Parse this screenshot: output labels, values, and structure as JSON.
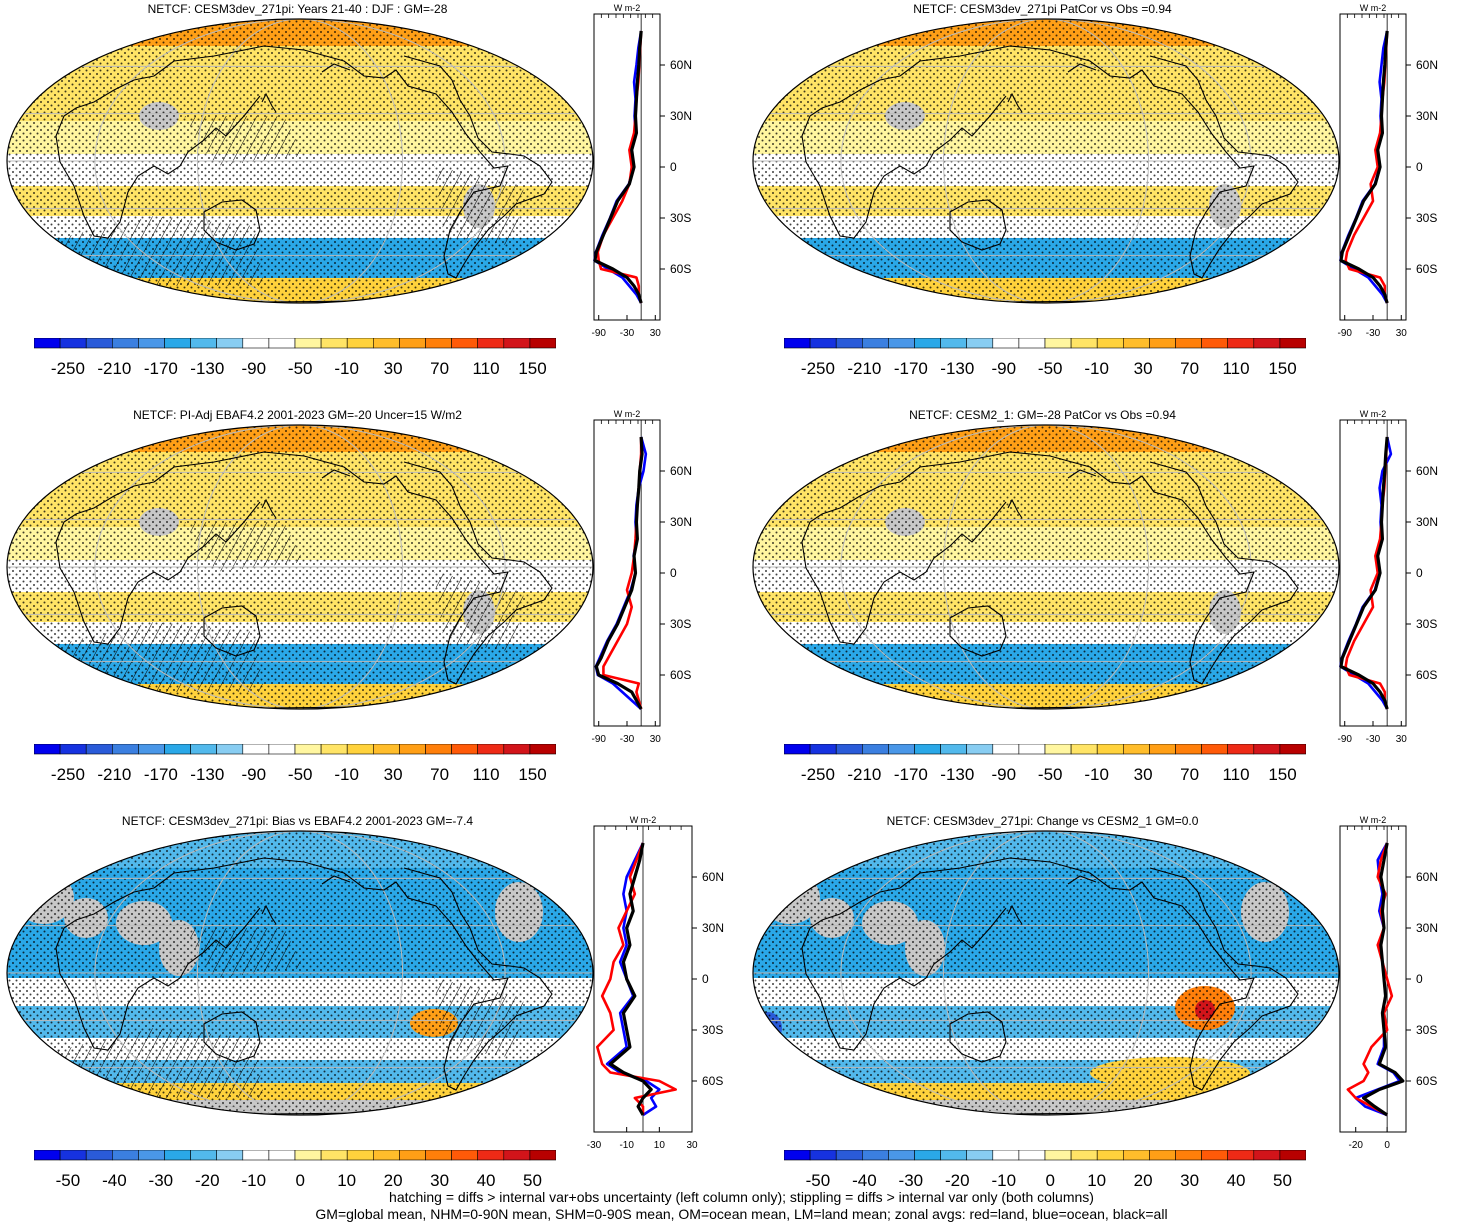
{
  "colors": {
    "land": "#c8c8c8",
    "white": "#ffffff",
    "land_line": "#ff0000",
    "ocean_line": "#0000ff",
    "all_line": "#000000",
    "scale_full": [
      "#0000ee",
      "#1632e0",
      "#2a5bd9",
      "#3b7fe0",
      "#4a97e8",
      "#2aa8e8",
      "#52b9ec",
      "#88cdf2",
      "#ffffff",
      "#ffffff",
      "#fff6a0",
      "#ffe466",
      "#ffd23c",
      "#ffbd2b",
      "#ff9f16",
      "#ff7f0a",
      "#ff5a08",
      "#ee2a16",
      "#d2141a",
      "#b80000"
    ],
    "scale_diff": [
      "#0000ee",
      "#1632e0",
      "#2a5bd9",
      "#3b7fe0",
      "#4a97e8",
      "#2aa8e8",
      "#52b9ec",
      "#88cdf2",
      "#ffffff",
      "#ffffff",
      "#fff6a0",
      "#ffe466",
      "#ffd23c",
      "#ffbd2b",
      "#ff9f16",
      "#ff7f0a",
      "#ff5a08",
      "#ee2a16",
      "#d2141a",
      "#b80000"
    ]
  },
  "panels": [
    {
      "title": "NETCF: CESM3dev_271pi: Years 21-40 : DJF : GM=-28",
      "kind": "full",
      "hatch": true,
      "colorbar_labels": [
        "-250",
        "-210",
        "-170",
        "-130",
        "-90",
        "-50",
        "-10",
        "30",
        "70",
        "110",
        "150"
      ],
      "zonal": {
        "unit": "W m-2",
        "xticks": [
          "-90",
          "-30",
          "30"
        ],
        "xlim": [
          -100,
          40
        ],
        "yticks": [
          "60N",
          "30N",
          "0",
          "30S",
          "60S"
        ]
      }
    },
    {
      "title": "NETCF: CESM3dev_271pi PatCor vs Obs =0.94",
      "kind": "full",
      "hatch": false,
      "colorbar_labels": [
        "-250",
        "-210",
        "-170",
        "-130",
        "-90",
        "-50",
        "-10",
        "30",
        "70",
        "110",
        "150"
      ],
      "zonal": {
        "unit": "W m-2",
        "xticks": [
          "-90",
          "-30",
          "30"
        ],
        "xlim": [
          -100,
          40
        ],
        "yticks": [
          "60N",
          "30N",
          "0",
          "30S",
          "60S"
        ]
      }
    },
    {
      "title": "NETCF: PI-Adj EBAF4.2 2001-2023 GM=-20 Uncer=15 W/m2",
      "kind": "full",
      "hatch": true,
      "colorbar_labels": [
        "-250",
        "-210",
        "-170",
        "-130",
        "-90",
        "-50",
        "-10",
        "30",
        "70",
        "110",
        "150"
      ],
      "zonal": {
        "unit": "W m-2",
        "xticks": [
          "-90",
          "-30",
          "30"
        ],
        "xlim": [
          -100,
          40
        ],
        "yticks": [
          "60N",
          "30N",
          "0",
          "30S",
          "60S"
        ]
      }
    },
    {
      "title": "NETCF: CESM2_1: GM=-28 PatCor vs Obs =0.94",
      "kind": "full",
      "hatch": false,
      "colorbar_labels": [
        "-250",
        "-210",
        "-170",
        "-130",
        "-90",
        "-50",
        "-10",
        "30",
        "70",
        "110",
        "150"
      ],
      "zonal": {
        "unit": "W m-2",
        "xticks": [
          "-90",
          "-30",
          "30"
        ],
        "xlim": [
          -100,
          40
        ],
        "yticks": [
          "60N",
          "30N",
          "0",
          "30S",
          "60S"
        ]
      }
    },
    {
      "title": "NETCF: CESM3dev_271pi: Bias vs EBAF4.2 2001-2023 GM=-7.4",
      "kind": "diff",
      "hatch": true,
      "colorbar_labels": [
        "-50",
        "-40",
        "-30",
        "-20",
        "-10",
        "0",
        "10",
        "20",
        "30",
        "40",
        "50"
      ],
      "zonal": {
        "unit": "W m-2",
        "xticks": [
          "-30",
          "-10",
          "10",
          "30"
        ],
        "xlim": [
          -30,
          30
        ],
        "yticks": [
          "60N",
          "30N",
          "0",
          "30S",
          "60S"
        ]
      }
    },
    {
      "title": "NETCF: CESM3dev_271pi: Change vs CESM2_1 GM=0.0",
      "kind": "diff",
      "hatch": false,
      "colorbar_labels": [
        "-50",
        "-40",
        "-30",
        "-20",
        "-10",
        "0",
        "10",
        "20",
        "30",
        "40",
        "50"
      ],
      "zonal": {
        "unit": "W m-2",
        "xticks": [
          "-20",
          "0"
        ],
        "xlim": [
          -30,
          12
        ],
        "yticks": [
          "60N",
          "30N",
          "0",
          "30S",
          "60S"
        ]
      }
    }
  ],
  "footer": {
    "line1": "hatching = diffs > internal var+obs uncertainty (left column only); stippling = diffs > internal var only (both columns)",
    "line2": "GM=global mean, NHM=0-90N mean, SHM=0-90S mean, OM=ocean mean, LM=land mean; zonal avgs: red=land, blue=ocean, black=all"
  },
  "chart_data": [
    {
      "type": "line",
      "title": "NETCF: CESM3dev_271pi: Years 21-40 : DJF : GM=-28",
      "xlabel": "W m-2",
      "ylabel": "",
      "xlim": [
        -100,
        40
      ],
      "ylim": [
        -90,
        90
      ],
      "y": [
        80,
        70,
        60,
        50,
        40,
        30,
        20,
        10,
        0,
        -10,
        -20,
        -30,
        -40,
        -50,
        -55,
        -60,
        -65,
        -70,
        -75,
        -80
      ],
      "series": [
        {
          "name": "all",
          "x": [
            0,
            -3,
            -5,
            -8,
            -10,
            -12,
            -10,
            -20,
            -15,
            -25,
            -50,
            -65,
            -80,
            -95,
            -98,
            -60,
            -30,
            -15,
            -5,
            0
          ]
        },
        {
          "name": "land",
          "x": [
            0,
            -2,
            -4,
            -6,
            -10,
            -12,
            -15,
            -25,
            -20,
            -25,
            -40,
            -60,
            -80,
            -92,
            -90,
            -85,
            -10,
            -5,
            -5,
            0
          ]
        },
        {
          "name": "ocean",
          "x": [
            0,
            -6,
            -10,
            -15,
            -12,
            -14,
            -12,
            -22,
            -16,
            -26,
            -52,
            -66,
            -82,
            -96,
            -99,
            -70,
            -40,
            -25,
            -10,
            0
          ]
        }
      ]
    },
    {
      "type": "line",
      "title": "NETCF: CESM3dev_271pi PatCor vs Obs =0.94",
      "xlabel": "W m-2",
      "ylabel": "",
      "xlim": [
        -100,
        40
      ],
      "ylim": [
        -90,
        90
      ],
      "y": [
        80,
        70,
        60,
        50,
        40,
        30,
        20,
        10,
        0,
        -10,
        -20,
        -30,
        -40,
        -50,
        -55,
        -60,
        -65,
        -70,
        -75,
        -80
      ],
      "series": [
        {
          "name": "all",
          "x": [
            0,
            -3,
            -5,
            -8,
            -10,
            -12,
            -10,
            -20,
            -15,
            -25,
            -50,
            -65,
            -80,
            -95,
            -98,
            -60,
            -30,
            -15,
            -5,
            0
          ]
        },
        {
          "name": "land",
          "x": [
            0,
            -2,
            -4,
            -6,
            -10,
            -12,
            -15,
            -25,
            -20,
            -35,
            -30,
            -50,
            -70,
            -85,
            -88,
            -80,
            -15,
            -5,
            -5,
            0
          ]
        },
        {
          "name": "ocean",
          "x": [
            0,
            -8,
            -12,
            -16,
            -12,
            -14,
            -12,
            -22,
            -16,
            -26,
            -52,
            -66,
            -82,
            -96,
            -99,
            -70,
            -40,
            -25,
            -10,
            0
          ]
        }
      ]
    },
    {
      "type": "line",
      "title": "NETCF: PI-Adj EBAF4.2 2001-2023 GM=-20 Uncer=15 W/m2",
      "xlabel": "W m-2",
      "ylabel": "",
      "xlim": [
        -100,
        40
      ],
      "ylim": [
        -90,
        90
      ],
      "y": [
        80,
        70,
        60,
        50,
        40,
        30,
        20,
        10,
        0,
        -10,
        -20,
        -30,
        -40,
        -50,
        -55,
        -60,
        -65,
        -70,
        -75,
        -80
      ],
      "series": [
        {
          "name": "all",
          "x": [
            0,
            2,
            -3,
            -5,
            -8,
            -10,
            -8,
            -15,
            -12,
            -20,
            -35,
            -50,
            -70,
            -85,
            -95,
            -90,
            -50,
            -20,
            -10,
            0
          ]
        },
        {
          "name": "land",
          "x": [
            0,
            0,
            -3,
            -5,
            -8,
            -10,
            -12,
            -15,
            -20,
            -30,
            -20,
            -30,
            -50,
            -70,
            -80,
            -80,
            -5,
            -10,
            -5,
            0
          ]
        },
        {
          "name": "ocean",
          "x": [
            0,
            10,
            5,
            -5,
            -10,
            -12,
            -10,
            -16,
            -12,
            -22,
            -37,
            -52,
            -72,
            -88,
            -96,
            -92,
            -60,
            -40,
            -20,
            0
          ]
        }
      ]
    },
    {
      "type": "line",
      "title": "NETCF: CESM2_1: GM=-28 PatCor vs Obs =0.94",
      "xlabel": "W m-2",
      "ylabel": "",
      "xlim": [
        -100,
        40
      ],
      "ylim": [
        -90,
        90
      ],
      "y": [
        80,
        70,
        60,
        50,
        40,
        30,
        20,
        10,
        0,
        -10,
        -20,
        -30,
        -40,
        -50,
        -55,
        -60,
        -65,
        -70,
        -75,
        -80
      ],
      "series": [
        {
          "name": "all",
          "x": [
            0,
            -3,
            -5,
            -8,
            -10,
            -12,
            -10,
            -20,
            -15,
            -25,
            -50,
            -65,
            -80,
            -95,
            -98,
            -60,
            -30,
            -15,
            -5,
            0
          ]
        },
        {
          "name": "land",
          "x": [
            0,
            -2,
            -4,
            -6,
            -10,
            -12,
            -15,
            -25,
            -20,
            -35,
            -30,
            -50,
            -70,
            -85,
            -88,
            -80,
            -15,
            -5,
            -5,
            0
          ]
        },
        {
          "name": "ocean",
          "x": [
            0,
            8,
            -10,
            -16,
            -12,
            -14,
            -12,
            -22,
            -16,
            -26,
            -52,
            -66,
            -82,
            -96,
            -99,
            -70,
            -40,
            -25,
            -10,
            0
          ]
        }
      ]
    },
    {
      "type": "line",
      "title": "NETCF: CESM3dev_271pi: Bias vs EBAF4.2 2001-2023 GM=-7.4",
      "xlabel": "W m-2",
      "ylabel": "",
      "xlim": [
        -30,
        30
      ],
      "ylim": [
        -90,
        90
      ],
      "y": [
        80,
        70,
        60,
        50,
        40,
        30,
        20,
        10,
        0,
        -10,
        -20,
        -30,
        -40,
        -50,
        -55,
        -60,
        -65,
        -70,
        -75,
        -80
      ],
      "series": [
        {
          "name": "all",
          "x": [
            0,
            -2,
            -5,
            -8,
            -6,
            -10,
            -8,
            -12,
            -10,
            -5,
            -12,
            -10,
            -8,
            -20,
            -12,
            0,
            5,
            0,
            -3,
            0
          ]
        },
        {
          "name": "land",
          "x": [
            0,
            -4,
            -8,
            -5,
            -10,
            -15,
            -12,
            -18,
            -20,
            -25,
            -20,
            -18,
            -28,
            -25,
            -20,
            10,
            20,
            -5,
            0,
            0
          ]
        },
        {
          "name": "ocean",
          "x": [
            0,
            -5,
            -10,
            -12,
            -10,
            -12,
            -10,
            -14,
            -10,
            -6,
            -14,
            -12,
            -10,
            -22,
            -14,
            2,
            10,
            5,
            8,
            0
          ]
        }
      ]
    },
    {
      "type": "line",
      "title": "NETCF: CESM3dev_271pi: Change vs CESM2_1 GM=0.0",
      "xlabel": "W m-2",
      "ylabel": "",
      "xlim": [
        -30,
        12
      ],
      "ylim": [
        -90,
        90
      ],
      "y": [
        80,
        70,
        60,
        50,
        40,
        30,
        20,
        10,
        0,
        -10,
        -20,
        -30,
        -40,
        -50,
        -55,
        -60,
        -65,
        -70,
        -75,
        -80
      ],
      "series": [
        {
          "name": "all",
          "x": [
            0,
            -2,
            -4,
            -2,
            -3,
            -2,
            -4,
            -3,
            -2,
            -1,
            -3,
            -2,
            -1,
            -5,
            5,
            10,
            -5,
            -15,
            -8,
            0
          ]
        },
        {
          "name": "land",
          "x": [
            0,
            -4,
            -6,
            -1,
            -4,
            -2,
            -6,
            -3,
            0,
            3,
            -2,
            0,
            -10,
            -15,
            -12,
            -15,
            -25,
            -20,
            -10,
            0
          ]
        },
        {
          "name": "ocean",
          "x": [
            0,
            -6,
            -5,
            -3,
            -5,
            -2,
            -5,
            -3,
            -2,
            -1,
            -3,
            -2,
            -2,
            -6,
            4,
            8,
            -6,
            -20,
            -14,
            0
          ]
        }
      ]
    }
  ]
}
